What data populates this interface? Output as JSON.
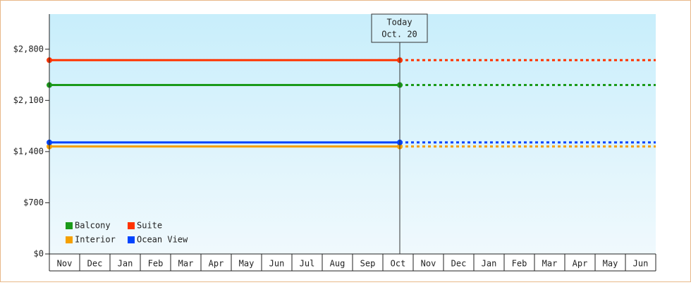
{
  "chart_data": {
    "type": "line",
    "categories": [
      "Nov",
      "Dec",
      "Jan",
      "Feb",
      "Mar",
      "Apr",
      "May",
      "Jun",
      "Jul",
      "Aug",
      "Sep",
      "Oct",
      "Nov",
      "Dec",
      "Jan",
      "Feb",
      "Mar",
      "Apr",
      "May",
      "Jun"
    ],
    "series": [
      {
        "name": "Balcony",
        "color": "#1a9a1a",
        "value": 2310
      },
      {
        "name": "Suite",
        "color": "#ff3300",
        "value": 2650
      },
      {
        "name": "Interior",
        "color": "#f5a000",
        "value": 1470
      },
      {
        "name": "Ocean View",
        "color": "#0044ff",
        "value": 1525
      }
    ],
    "today": {
      "title": "Today",
      "date": "Oct. 20"
    },
    "ylim": [
      0,
      3280
    ],
    "yticks": [
      {
        "value": 0,
        "label": "$0"
      },
      {
        "value": 700,
        "label": "$700"
      },
      {
        "value": 1400,
        "label": "$1,400"
      },
      {
        "value": 2100,
        "label": "$2,100"
      },
      {
        "value": 2800,
        "label": "$2,800"
      }
    ]
  }
}
